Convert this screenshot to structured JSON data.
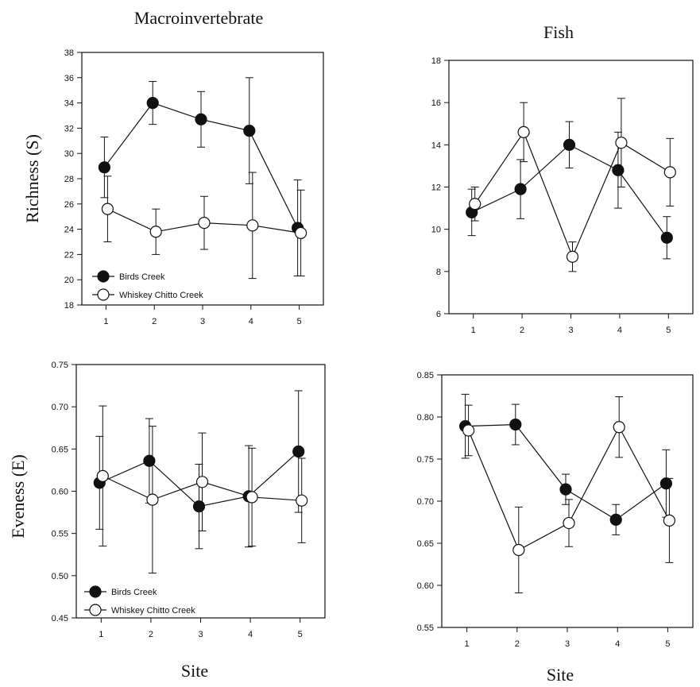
{
  "header_left": "Macroinvertebrate",
  "header_right": "Fish",
  "ylabel_top": "Richness (S)",
  "ylabel_bottom": "Eveness (E)",
  "xlabel_left": "Site",
  "xlabel_right": "Site",
  "colors": {
    "birds_marker": "#111111",
    "whiskey_marker": "#ffffff",
    "line": "#111111",
    "axis": "#111111"
  },
  "chart_data": [
    {
      "id": "macro_richness",
      "type": "line",
      "title": "Macroinvertebrate",
      "xlabel": "",
      "ylabel": "Richness (S)",
      "x": [
        1,
        2,
        3,
        4,
        5
      ],
      "xlim": [
        0.5,
        5.5
      ],
      "ylim": [
        18,
        38
      ],
      "yticks": [
        18,
        20,
        22,
        24,
        26,
        28,
        30,
        32,
        34,
        36,
        38
      ],
      "ytick_decimals": 0,
      "legend": "bottom-left",
      "series": [
        {
          "name": "Birds Creek",
          "filled": true,
          "values": [
            28.9,
            34.0,
            32.7,
            31.8,
            24.1
          ],
          "errors": [
            2.4,
            1.7,
            2.2,
            4.2,
            3.8
          ]
        },
        {
          "name": "Whiskey Chitto Creek",
          "filled": false,
          "values": [
            25.6,
            23.8,
            24.5,
            24.3,
            23.7
          ],
          "errors": [
            2.6,
            1.8,
            2.1,
            4.2,
            3.4
          ]
        }
      ]
    },
    {
      "id": "fish_richness",
      "type": "line",
      "title": "Fish",
      "xlabel": "",
      "ylabel": "",
      "x": [
        1,
        2,
        3,
        4,
        5
      ],
      "xlim": [
        0.5,
        5.5
      ],
      "ylim": [
        6,
        18
      ],
      "yticks": [
        6,
        8,
        10,
        12,
        14,
        16,
        18
      ],
      "ytick_decimals": 0,
      "legend": "none",
      "series": [
        {
          "name": "Birds Creek",
          "filled": true,
          "values": [
            10.8,
            11.9,
            14.0,
            12.8,
            9.6
          ],
          "errors": [
            1.1,
            1.4,
            1.1,
            1.8,
            1.0
          ]
        },
        {
          "name": "Whiskey Chitto Creek",
          "filled": false,
          "values": [
            11.2,
            14.6,
            8.7,
            14.1,
            12.7
          ],
          "errors": [
            0.8,
            1.4,
            0.7,
            2.1,
            1.6
          ]
        }
      ]
    },
    {
      "id": "macro_evenness",
      "type": "line",
      "title": "",
      "xlabel": "Site",
      "ylabel": "Eveness (E)",
      "x": [
        1,
        2,
        3,
        4,
        5
      ],
      "xlim": [
        0.5,
        5.5
      ],
      "ylim": [
        0.45,
        0.75
      ],
      "yticks": [
        0.45,
        0.5,
        0.55,
        0.6,
        0.65,
        0.7,
        0.75
      ],
      "ytick_decimals": 2,
      "legend": "bottom-left",
      "series": [
        {
          "name": "Birds Creek",
          "filled": true,
          "values": [
            0.61,
            0.636,
            0.582,
            0.594,
            0.647
          ],
          "errors": [
            0.055,
            0.05,
            0.05,
            0.06,
            0.072
          ]
        },
        {
          "name": "Whiskey Chitto Creek",
          "filled": false,
          "values": [
            0.618,
            0.59,
            0.611,
            0.593,
            0.589
          ],
          "errors": [
            0.083,
            0.087,
            0.058,
            0.058,
            0.05
          ]
        }
      ]
    },
    {
      "id": "fish_evenness",
      "type": "line",
      "title": "",
      "xlabel": "Site",
      "ylabel": "",
      "x": [
        1,
        2,
        3,
        4,
        5
      ],
      "xlim": [
        0.5,
        5.5
      ],
      "ylim": [
        0.55,
        0.85
      ],
      "yticks": [
        0.55,
        0.6,
        0.65,
        0.7,
        0.75,
        0.8,
        0.85
      ],
      "ytick_decimals": 2,
      "legend": "none",
      "series": [
        {
          "name": "Birds Creek",
          "filled": true,
          "values": [
            0.789,
            0.791,
            0.714,
            0.678,
            0.721
          ],
          "errors": [
            0.038,
            0.024,
            0.018,
            0.018,
            0.04
          ]
        },
        {
          "name": "Whiskey Chitto Creek",
          "filled": false,
          "values": [
            0.784,
            0.642,
            0.674,
            0.788,
            0.677
          ],
          "errors": [
            0.03,
            0.051,
            0.028,
            0.036,
            0.05
          ]
        }
      ]
    }
  ]
}
